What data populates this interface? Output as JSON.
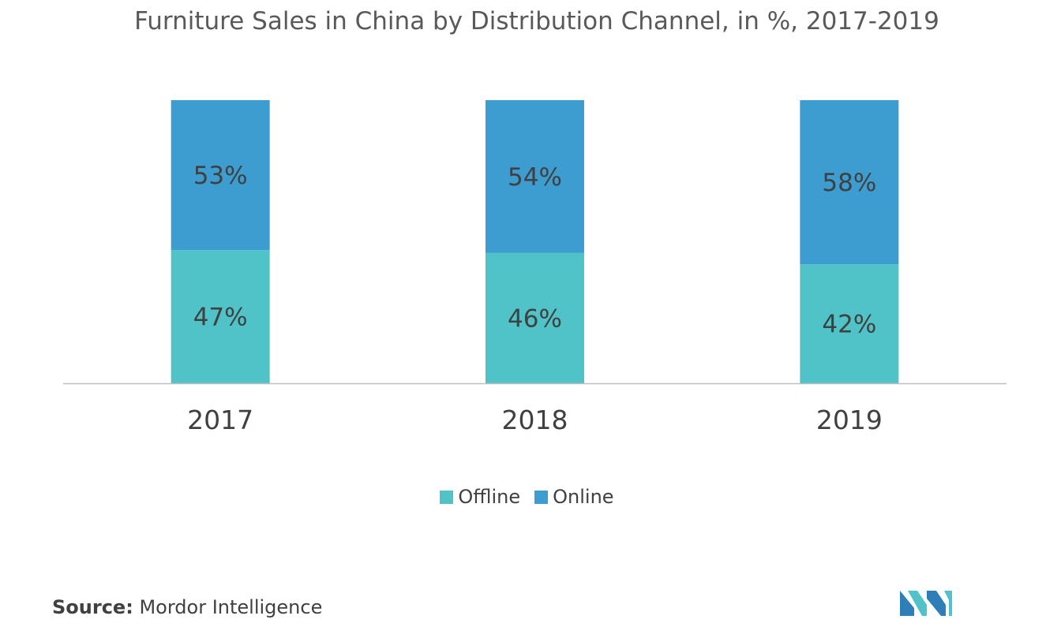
{
  "chart_data": {
    "type": "bar",
    "stacked": true,
    "stack_mode": "percent",
    "title": "Furniture Sales in China by Distribution Channel, in %, 2017-2019",
    "xlabel": "",
    "ylabel": "",
    "categories": [
      "2017",
      "2018",
      "2019"
    ],
    "series": [
      {
        "name": "Offline",
        "values": [
          47,
          46,
          42
        ],
        "labels": [
          "47%",
          "46%",
          "42%"
        ],
        "color": "#4fc3c8"
      },
      {
        "name": "Online",
        "values": [
          53,
          54,
          58
        ],
        "labels": [
          "53%",
          "54%",
          "58%"
        ],
        "color": "#3d9dd0"
      }
    ],
    "ylim": [
      0,
      100
    ],
    "y_axis_visible": false,
    "grid": false,
    "legend": "bottom-center"
  },
  "source": {
    "label": "Source:",
    "text": "Mordor Intelligence"
  },
  "logo": {
    "icon": "mordor-intelligence-logo-icon",
    "colors": [
      "#2e7fb8",
      "#4fc3c8"
    ]
  },
  "colors": {
    "axis_line": "#bfbfbf",
    "data_label": "#404040",
    "tick_label": "#404040"
  }
}
